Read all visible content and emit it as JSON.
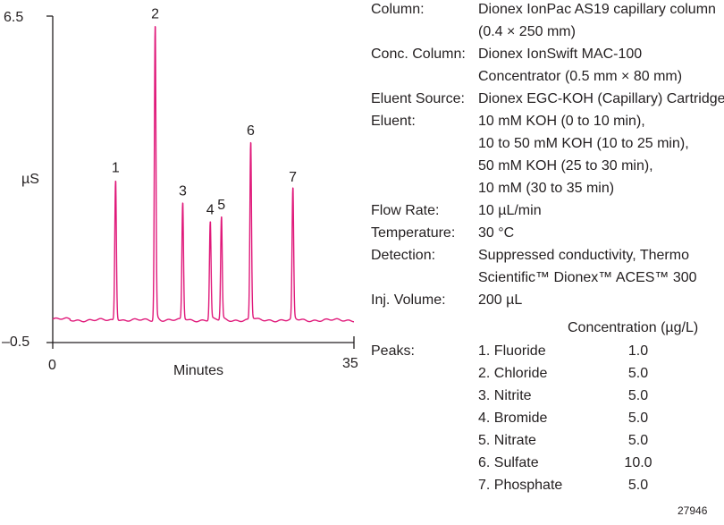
{
  "chart_data": {
    "type": "line",
    "title": "",
    "xlabel": "Minutes",
    "ylabel": "µS",
    "xlim": [
      0,
      35
    ],
    "ylim": [
      -0.5,
      6.5
    ],
    "x_ticks": [
      "0",
      "35"
    ],
    "y_ticks": [
      "6.5",
      "–0.5"
    ],
    "line_color": "#e0197a",
    "baseline": 0,
    "peaks": [
      {
        "label": "1",
        "time": 7.3,
        "height": 3.0
      },
      {
        "label": "2",
        "time": 11.9,
        "height": 6.3
      },
      {
        "label": "3",
        "time": 15.1,
        "height": 2.5
      },
      {
        "label": "4",
        "time": 18.3,
        "height": 2.1
      },
      {
        "label": "5",
        "time": 19.6,
        "height": 2.2
      },
      {
        "label": "6",
        "time": 23.0,
        "height": 3.8
      },
      {
        "label": "7",
        "time": 27.9,
        "height": 2.8
      }
    ]
  },
  "conditions": [
    {
      "key": "Column:",
      "lines": [
        "Dionex IonPac AS19 capillary column",
        "(0.4 × 250 mm)"
      ]
    },
    {
      "key": "Conc. Column:",
      "lines": [
        "Dionex IonSwift MAC-100",
        "Concentrator (0.5 mm × 80 mm)"
      ]
    },
    {
      "key": "Eluent Source:",
      "lines": [
        "Dionex EGC-KOH (Capillary) Cartridge"
      ]
    },
    {
      "key": "Eluent:",
      "lines": [
        "10 mM KOH (0 to 10 min),",
        "10 to 50 mM KOH (10 to 25 min),",
        "50 mM KOH (25 to 30 min),",
        "10 mM (30 to 35 min)"
      ]
    },
    {
      "key": "Flow Rate:",
      "lines": [
        "10 µL/min"
      ]
    },
    {
      "key": "Temperature:",
      "lines": [
        "30 °C"
      ]
    },
    {
      "key": "Detection:",
      "lines": [
        "Suppressed conductivity, Thermo",
        "Scientific™ Dionex™ ACES™ 300"
      ]
    },
    {
      "key": "Inj. Volume:",
      "lines": [
        "200 µL"
      ]
    }
  ],
  "peaks_table": {
    "heading": "Peaks:",
    "concentration_header": "Concentration (µg/L)",
    "rows": [
      {
        "name": "1. Fluoride",
        "conc": "1.0"
      },
      {
        "name": "2. Chloride",
        "conc": "5.0"
      },
      {
        "name": "3. Nitrite",
        "conc": "5.0"
      },
      {
        "name": "4. Bromide",
        "conc": "5.0"
      },
      {
        "name": "5. Nitrate",
        "conc": "5.0"
      },
      {
        "name": "6. Sulfate",
        "conc": "10.0"
      },
      {
        "name": "7. Phosphate",
        "conc": "5.0"
      }
    ]
  },
  "figure_number": "27946"
}
